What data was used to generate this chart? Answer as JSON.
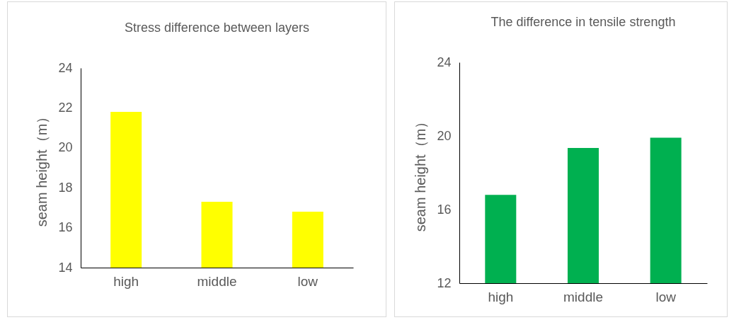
{
  "chart_data": [
    {
      "type": "bar",
      "title": "Stress difference between layers",
      "ylabel": "seam height（m）",
      "categories": [
        "high",
        "middle",
        "low"
      ],
      "values": [
        21.8,
        17.3,
        16.8
      ],
      "color": "#ffff00",
      "ylim": [
        14,
        24
      ],
      "yticks": [
        14,
        16,
        18,
        20,
        22,
        24
      ],
      "grid": false
    },
    {
      "type": "bar",
      "title": "The difference in tensile strength",
      "ylabel": "seam height（m）",
      "categories": [
        "high",
        "middle",
        "low"
      ],
      "values": [
        16.8,
        19.35,
        19.9
      ],
      "color": "#00b050",
      "ylim": [
        12,
        24
      ],
      "yticks": [
        12,
        16,
        20,
        24
      ],
      "grid": false
    }
  ]
}
